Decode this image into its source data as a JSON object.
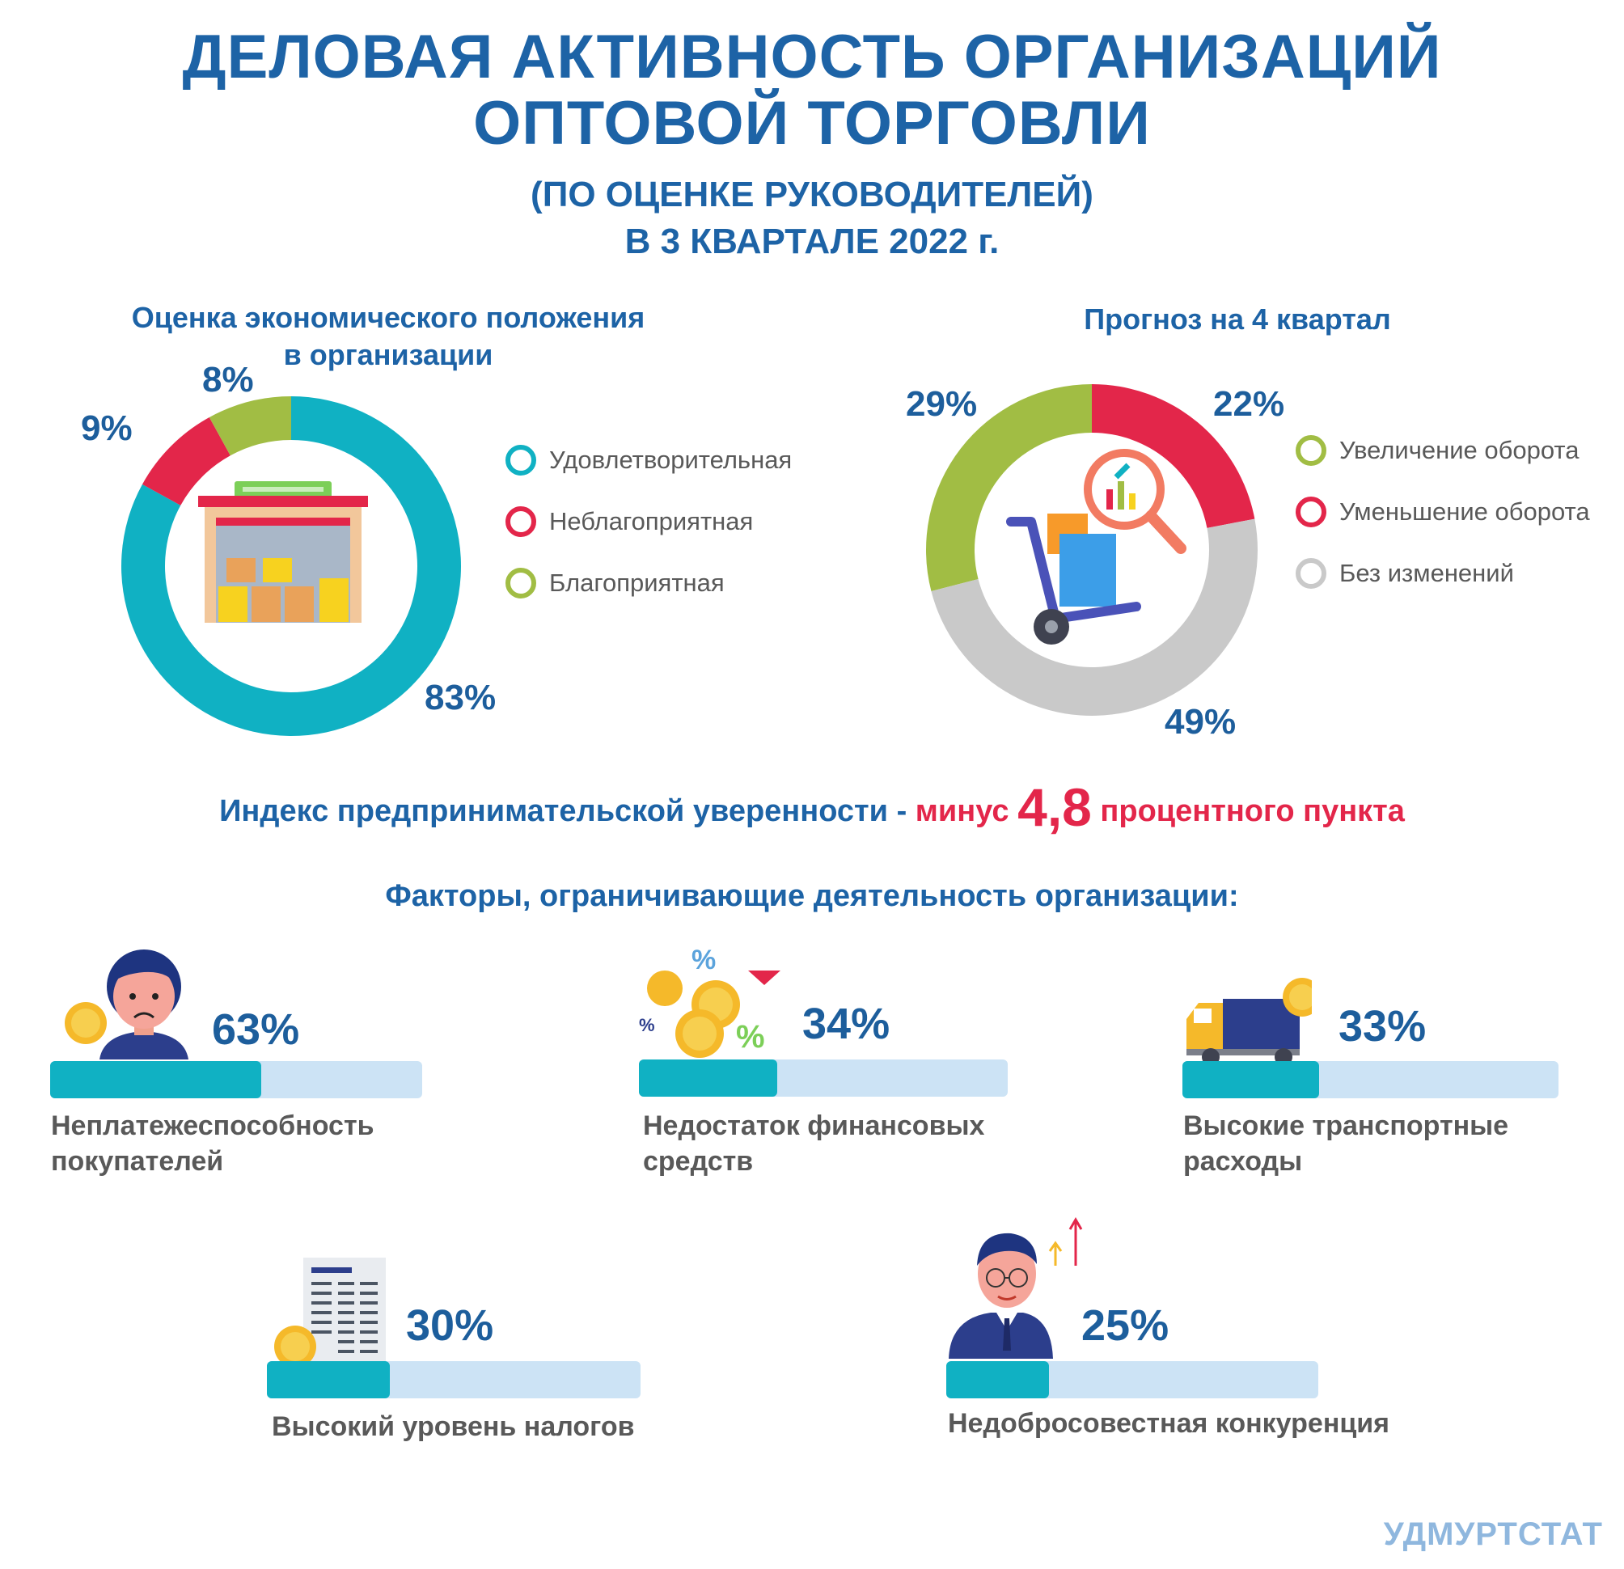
{
  "title": {
    "line1": "ДЕЛОВАЯ АКТИВНОСТЬ ОРГАНИЗАЦИЙ",
    "line2": "ОПТОВОЙ ТОРГОВЛИ",
    "sub1": "(ПО ОЦЕНКЕ РУКОВОДИТЕЛЕЙ)",
    "sub2": "В 3 КВАРТАЛЕ 2022 г."
  },
  "colors": {
    "title_blue": "#1d63a6",
    "teal": "#10b1c3",
    "red": "#e3264a",
    "green": "#a1bd44",
    "grey": "#c9c9c9",
    "bar_bg": "#cce3f5"
  },
  "chart_data": [
    {
      "type": "pie",
      "title": "Оценка экономического положения в организации",
      "title_line1": "Оценка экономического положения",
      "title_line2": "в организации",
      "categories": [
        "Удовлетворительная",
        "Неблагоприятная",
        "Благоприятная"
      ],
      "values": [
        83,
        9,
        8
      ],
      "labels": [
        "83%",
        "9%",
        "8%"
      ],
      "colors": [
        "#10b1c3",
        "#e3264a",
        "#a1bd44"
      ],
      "legend": "right"
    },
    {
      "type": "pie",
      "title": "Прогноз на 4 квартал",
      "categories": [
        "Увеличение оборота",
        "Уменьшение оборота",
        "Без изменений"
      ],
      "values": [
        29,
        22,
        49
      ],
      "labels": [
        "29%",
        "22%",
        "49%"
      ],
      "colors": [
        "#a1bd44",
        "#e3264a",
        "#c9c9c9"
      ],
      "legend": "right"
    },
    {
      "type": "bar",
      "title": "Факторы, ограничивающие деятельность организации:",
      "categories": [
        "Неплатежеспособность покупателей",
        "Недостаток финансовых средств",
        "Высокие транспортные расходы",
        "Высокий уровень налогов",
        "Недобросовестная конкуренция"
      ],
      "values": [
        63,
        34,
        33,
        30,
        25
      ],
      "labels": [
        "63%",
        "34%",
        "33%",
        "30%",
        "25%"
      ]
    }
  ],
  "index": {
    "prefix": "Индекс предпринимательской уверенности - ",
    "minus": "минус",
    "value": "4,8",
    "suffix": "процентного пункта"
  },
  "factors": [
    {
      "pct": "63%",
      "value": 63,
      "line1": "Неплатежеспособность",
      "line2": "покупателей",
      "icon": "sad-person-icon"
    },
    {
      "pct": "34%",
      "value": 34,
      "line1": "Недостаток финансовых",
      "line2": "средств",
      "icon": "coins-percent-icon"
    },
    {
      "pct": "33%",
      "value": 33,
      "line1": "Высокие транспортные",
      "line2": "расходы",
      "icon": "truck-icon"
    },
    {
      "pct": "30%",
      "value": 30,
      "line1": "Высокий уровень налогов",
      "line2": "",
      "icon": "tax-document-icon"
    },
    {
      "pct": "25%",
      "value": 25,
      "line1": "Недобросовестная конкуренция",
      "line2": "",
      "icon": "businessman-icon"
    }
  ],
  "footer": "УДМУРТСТАТ"
}
